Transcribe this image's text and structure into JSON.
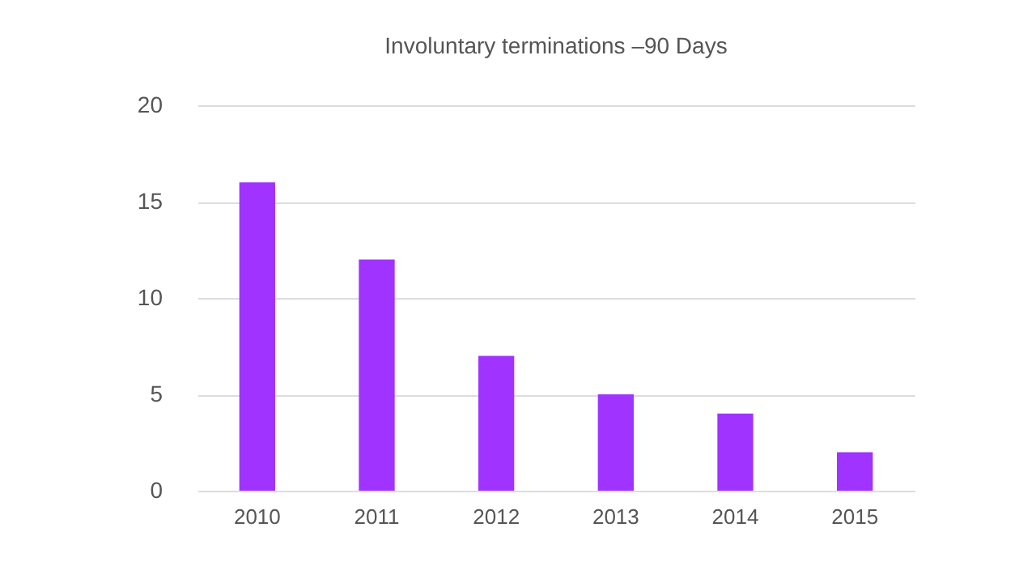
{
  "chart_data": {
    "type": "bar",
    "title": "Involuntary terminations –90 Days",
    "categories": [
      "2010",
      "2011",
      "2012",
      "2013",
      "2014",
      "2015"
    ],
    "values": [
      16,
      12,
      7,
      5,
      4,
      2
    ],
    "color": "#a033ff",
    "ylim": [
      0,
      20
    ],
    "yticks": [
      0,
      5,
      10,
      15,
      20
    ],
    "grid": true
  }
}
